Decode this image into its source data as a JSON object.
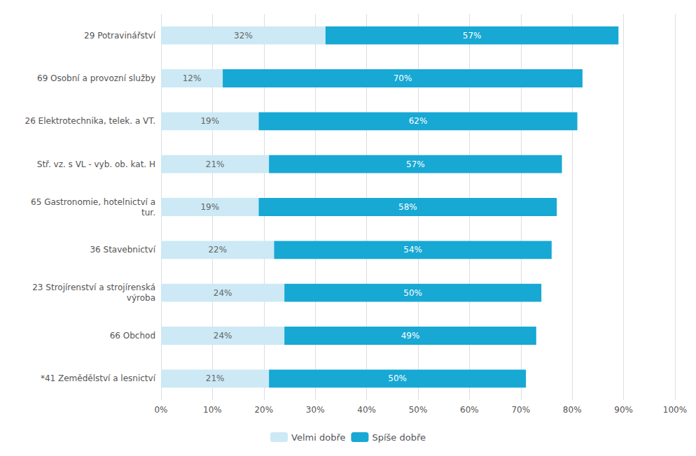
{
  "chart_data": {
    "type": "bar",
    "orientation": "horizontal",
    "stacked": true,
    "categories": [
      "29 Potravinářství",
      "69 Osobní a provozní služby",
      "26 Elektrotechnika, telek. a VT.",
      "Stř. vz. s VL - vyb. ob. kat. H",
      "65 Gastronomie, hotelnictví a\ntur.",
      "36 Stavebnictví",
      "23 Strojírenství a strojírenská\nvýroba",
      "66 Obchod",
      "*41 Zemědělství a lesnictví"
    ],
    "series": [
      {
        "name": "Velmi dobře",
        "color": "#cce9f5",
        "values": [
          32,
          12,
          19,
          21,
          19,
          22,
          24,
          24,
          21
        ],
        "value_labels": [
          "32%",
          "12%",
          "19%",
          "21%",
          "19%",
          "22%",
          "24%",
          "24%",
          "21%"
        ]
      },
      {
        "name": "Spíše dobře",
        "color": "#17a8d4",
        "values": [
          57,
          70,
          62,
          57,
          58,
          54,
          50,
          49,
          50
        ],
        "value_labels": [
          "57%",
          "70%",
          "62%",
          "57%",
          "58%",
          "54%",
          "50%",
          "49%",
          "50%"
        ]
      }
    ],
    "xlim": [
      0,
      100
    ],
    "xticks": [
      {
        "value": 0,
        "label": "0%"
      },
      {
        "value": 10,
        "label": "10%"
      },
      {
        "value": 20,
        "label": "20%"
      },
      {
        "value": 30,
        "label": "30%"
      },
      {
        "value": 40,
        "label": "40%"
      },
      {
        "value": 50,
        "label": "50%"
      },
      {
        "value": 60,
        "label": "60%"
      },
      {
        "value": 70,
        "label": "70%"
      },
      {
        "value": 80,
        "label": "80%"
      },
      {
        "value": 90,
        "label": "90%"
      },
      {
        "value": 100,
        "label": "100%"
      }
    ],
    "grid": true,
    "legend": "bottom",
    "data_labels": true
  }
}
